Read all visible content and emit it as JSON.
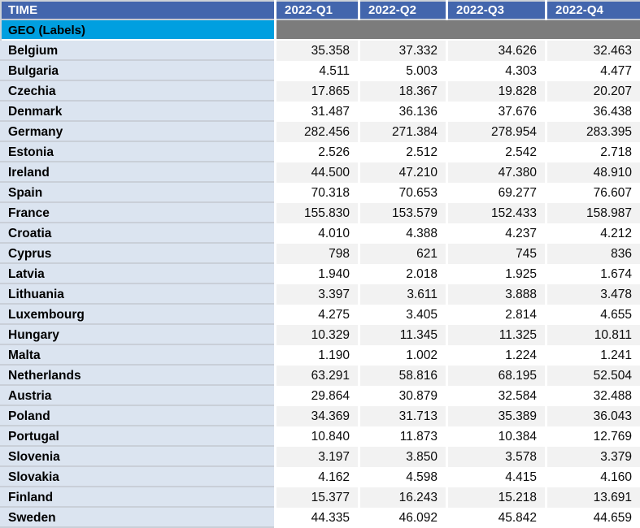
{
  "chart_data": {
    "type": "table",
    "title": "",
    "columns": [
      "TIME",
      "2022-Q1",
      "2022-Q2",
      "2022-Q3",
      "2022-Q4"
    ],
    "row_label_header": "GEO (Labels)",
    "rows": [
      {
        "label": "Belgium",
        "values": [
          "35.358",
          "37.332",
          "34.626",
          "32.463"
        ]
      },
      {
        "label": "Bulgaria",
        "values": [
          "4.511",
          "5.003",
          "4.303",
          "4.477"
        ]
      },
      {
        "label": "Czechia",
        "values": [
          "17.865",
          "18.367",
          "19.828",
          "20.207"
        ]
      },
      {
        "label": "Denmark",
        "values": [
          "31.487",
          "36.136",
          "37.676",
          "36.438"
        ]
      },
      {
        "label": "Germany",
        "values": [
          "282.456",
          "271.384",
          "278.954",
          "283.395"
        ]
      },
      {
        "label": "Estonia",
        "values": [
          "2.526",
          "2.512",
          "2.542",
          "2.718"
        ]
      },
      {
        "label": "Ireland",
        "values": [
          "44.500",
          "47.210",
          "47.380",
          "48.910"
        ]
      },
      {
        "label": "Spain",
        "values": [
          "70.318",
          "70.653",
          "69.277",
          "76.607"
        ]
      },
      {
        "label": "France",
        "values": [
          "155.830",
          "153.579",
          "152.433",
          "158.987"
        ]
      },
      {
        "label": "Croatia",
        "values": [
          "4.010",
          "4.388",
          "4.237",
          "4.212"
        ]
      },
      {
        "label": "Cyprus",
        "values": [
          "798",
          "621",
          "745",
          "836"
        ]
      },
      {
        "label": "Latvia",
        "values": [
          "1.940",
          "2.018",
          "1.925",
          "1.674"
        ]
      },
      {
        "label": "Lithuania",
        "values": [
          "3.397",
          "3.611",
          "3.888",
          "3.478"
        ]
      },
      {
        "label": "Luxembourg",
        "values": [
          "4.275",
          "3.405",
          "2.814",
          "4.655"
        ]
      },
      {
        "label": "Hungary",
        "values": [
          "10.329",
          "11.345",
          "11.325",
          "10.811"
        ]
      },
      {
        "label": "Malta",
        "values": [
          "1.190",
          "1.002",
          "1.224",
          "1.241"
        ]
      },
      {
        "label": "Netherlands",
        "values": [
          "63.291",
          "58.816",
          "68.195",
          "52.504"
        ]
      },
      {
        "label": "Austria",
        "values": [
          "29.864",
          "30.879",
          "32.584",
          "32.488"
        ]
      },
      {
        "label": "Poland",
        "values": [
          "34.369",
          "31.713",
          "35.389",
          "36.043"
        ]
      },
      {
        "label": "Portugal",
        "values": [
          "10.840",
          "11.873",
          "10.384",
          "12.769"
        ]
      },
      {
        "label": "Slovenia",
        "values": [
          "3.197",
          "3.850",
          "3.578",
          "3.379"
        ]
      },
      {
        "label": "Slovakia",
        "values": [
          "4.162",
          "4.598",
          "4.415",
          "4.160"
        ]
      },
      {
        "label": "Finland",
        "values": [
          "15.377",
          "16.243",
          "15.218",
          "13.691"
        ]
      },
      {
        "label": "Sweden",
        "values": [
          "44.335",
          "46.092",
          "45.842",
          "44.659"
        ]
      }
    ]
  },
  "colors": {
    "header_bg": "#4366AD",
    "header_text": "#FFFFFF",
    "geo_label_bg": "#009FE0",
    "geo_data_bg": "#7C7C7C",
    "label_column_bg": "#DBE4F0",
    "shaded_row_bg": "#F2F2F2"
  }
}
